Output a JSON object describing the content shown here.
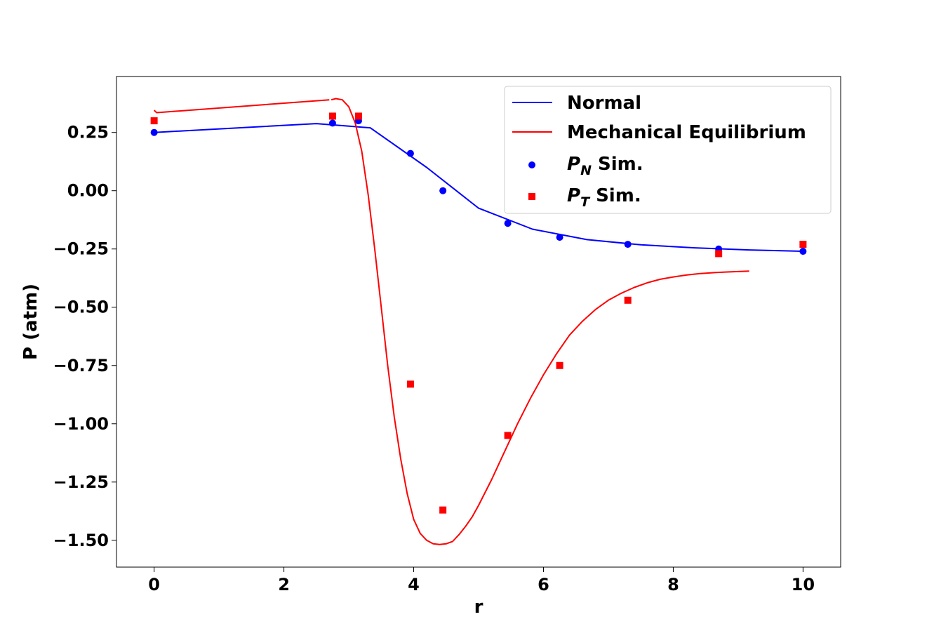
{
  "chart_data": {
    "type": "line",
    "title": "",
    "xlabel": "r",
    "ylabel": "P (atm)",
    "xlim": [
      -0.58,
      10.58
    ],
    "ylim": [
      -1.615,
      0.49
    ],
    "x_ticks": [
      0,
      2,
      4,
      6,
      8,
      10
    ],
    "x_tick_labels": [
      "0",
      "2",
      "4",
      "6",
      "8",
      "10"
    ],
    "y_ticks": [
      0.25,
      0.0,
      -0.25,
      -0.5,
      -0.75,
      -1.0,
      -1.25,
      -1.5
    ],
    "y_tick_labels": [
      "0.25",
      "0.00",
      "−0.25",
      "−0.50",
      "−0.75",
      "−1.00",
      "−1.25",
      "−1.50"
    ],
    "grid": false,
    "legend": {
      "position": "top-right",
      "entries": [
        {
          "label": "Normal",
          "marker": "line",
          "color": "#0000ff"
        },
        {
          "label": "Mechanical Equilibrium",
          "marker": "line",
          "color": "#ff0000"
        },
        {
          "label_main": "P",
          "label_sub": "N",
          "label_rest": " Sim.",
          "marker": "circle",
          "color": "#0000ff"
        },
        {
          "label_main": "P",
          "label_sub": "T",
          "label_rest": " Sim.",
          "marker": "square",
          "color": "#ff0000"
        }
      ]
    },
    "series": [
      {
        "name": "Normal",
        "kind": "line",
        "color": "#0000ff",
        "x": [
          0,
          2.5,
          3.33,
          4.2,
          5.0,
          5.83,
          6.67,
          7.5,
          8.33,
          9.17,
          10
        ],
        "y": [
          0.25,
          0.288,
          0.27,
          0.1,
          -0.075,
          -0.165,
          -0.21,
          -0.232,
          -0.245,
          -0.254,
          -0.26
        ]
      },
      {
        "name": "Mechanical Equilibrium",
        "kind": "line",
        "color": "#ff0000",
        "segments": [
          {
            "x": [
              0,
              0.04,
              2.7
            ],
            "y": [
              0.345,
              0.335,
              0.39
            ]
          },
          {
            "x": [
              2.73,
              2.8,
              2.9,
              3.0,
              3.1,
              3.2,
              3.3,
              3.4,
              3.5,
              3.6,
              3.7,
              3.8,
              3.9,
              4.0,
              4.1,
              4.2,
              4.3,
              4.4,
              4.5,
              4.55,
              4.6,
              4.65,
              4.7,
              4.8,
              4.9,
              5.0,
              5.2,
              5.4,
              5.6,
              5.8,
              6.0,
              6.2,
              6.4,
              6.6,
              6.8,
              7.0,
              7.2,
              7.4,
              7.6,
              7.8,
              8.0,
              8.2,
              8.4,
              8.6,
              8.8,
              9.0,
              9.17
            ],
            "y": [
              0.39,
              0.395,
              0.39,
              0.36,
              0.29,
              0.17,
              -0.02,
              -0.25,
              -0.5,
              -0.75,
              -0.97,
              -1.15,
              -1.3,
              -1.41,
              -1.47,
              -1.5,
              -1.515,
              -1.518,
              -1.515,
              -1.51,
              -1.505,
              -1.49,
              -1.475,
              -1.44,
              -1.4,
              -1.35,
              -1.24,
              -1.12,
              -1.0,
              -0.89,
              -0.79,
              -0.7,
              -0.62,
              -0.56,
              -0.51,
              -0.47,
              -0.44,
              -0.415,
              -0.395,
              -0.38,
              -0.37,
              -0.362,
              -0.356,
              -0.352,
              -0.349,
              -0.347,
              -0.345
            ]
          }
        ]
      },
      {
        "name": "P_N Sim.",
        "kind": "scatter",
        "marker": "circle",
        "color": "#0000ff",
        "x": [
          0,
          2.75,
          3.15,
          3.95,
          4.45,
          5.45,
          6.25,
          7.3,
          8.7,
          10
        ],
        "y": [
          0.25,
          0.29,
          0.3,
          0.16,
          0.0,
          -0.14,
          -0.2,
          -0.23,
          -0.25,
          -0.26
        ]
      },
      {
        "name": "P_T Sim.",
        "kind": "scatter",
        "marker": "square",
        "color": "#ff0000",
        "x": [
          0,
          2.75,
          3.15,
          3.95,
          4.45,
          5.45,
          6.25,
          7.3,
          8.7,
          10
        ],
        "y": [
          0.3,
          0.32,
          0.32,
          -0.83,
          -1.37,
          -1.05,
          -0.75,
          -0.47,
          -0.27,
          -0.23
        ]
      }
    ]
  }
}
